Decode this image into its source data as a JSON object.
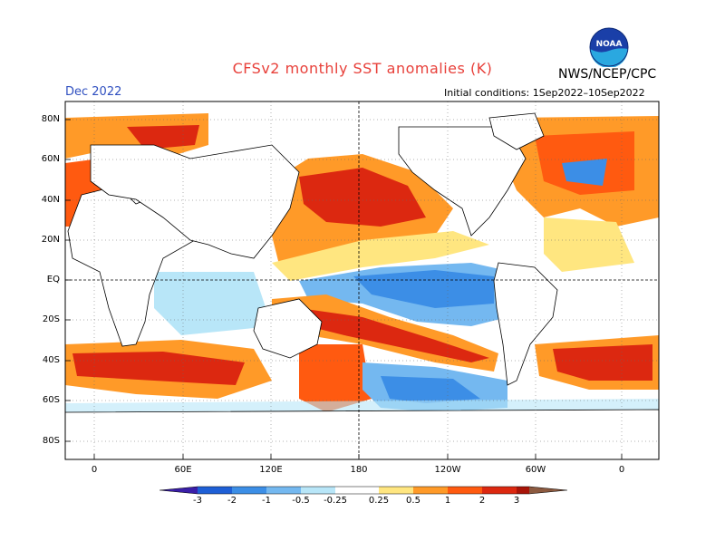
{
  "title": "CFSv2 monthly SST anomalies (K)",
  "forecast_month": "Dec 2022",
  "initial_conditions": "Initial conditions: 1Sep2022–10Sep2022",
  "agency": "NWS/NCEP/CPC",
  "logo_text": "NOAA",
  "latitude_labels": [
    "80N",
    "60N",
    "40N",
    "20N",
    "EQ",
    "20S",
    "40S",
    "60S",
    "80S"
  ],
  "longitude_labels": [
    "0",
    "60E",
    "120E",
    "180",
    "120W",
    "60W",
    "0"
  ],
  "colorbar": {
    "levels": [
      "-3",
      "-2",
      "-1",
      "-0.5",
      "-0.25",
      "0.25",
      "0.5",
      "1",
      "2",
      "3"
    ],
    "colors": [
      "#3a1ea8",
      "#1e5fd6",
      "#3c8ee6",
      "#74b8f0",
      "#b8e6f8",
      "#ffffff",
      "#ffe680",
      "#ff9a28",
      "#ff5a10",
      "#dc2810",
      "#a81408",
      "#8c5a40"
    ]
  }
}
